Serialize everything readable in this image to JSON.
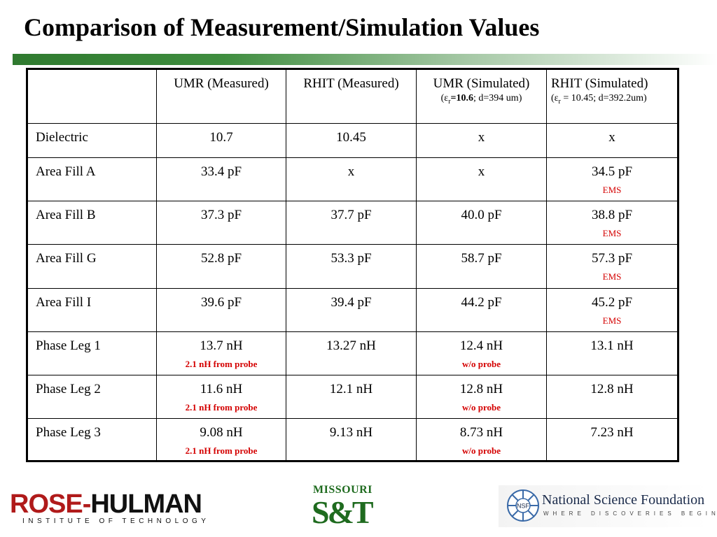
{
  "title": "Comparison of Measurement/Simulation Values",
  "table": {
    "headers": [
      {
        "label": "",
        "sub": ""
      },
      {
        "label": "UMR (Measured)",
        "sub": ""
      },
      {
        "label": "RHIT (Measured)",
        "sub": ""
      },
      {
        "label": "UMR (Simulated)",
        "sub_prefix": "(ε",
        "sub_r": "r",
        "sub_bold": "=10.6",
        "sub_suffix": "; d=394 um)"
      },
      {
        "label": "RHIT (Simulated)",
        "sub_prefix": "(ε",
        "sub_r": "r",
        "sub_suffix": " = 10.45; d=392.2um)"
      }
    ],
    "rows": [
      {
        "label": "Dielectric",
        "cells": [
          {
            "v": "10.7"
          },
          {
            "v": "10.45"
          },
          {
            "v": "x"
          },
          {
            "v": "x"
          }
        ]
      },
      {
        "label": "Area Fill A",
        "cells": [
          {
            "v": "33.4 pF"
          },
          {
            "v": "x"
          },
          {
            "v": "x"
          },
          {
            "v": "34.5 pF",
            "note": "EMS"
          }
        ]
      },
      {
        "label": "Area Fill B",
        "cells": [
          {
            "v": "37.3 pF"
          },
          {
            "v": "37.7 pF"
          },
          {
            "v": "40.0 pF"
          },
          {
            "v": "38.8 pF",
            "note": "EMS"
          }
        ]
      },
      {
        "label": "Area Fill G",
        "cells": [
          {
            "v": "52.8 pF"
          },
          {
            "v": "53.3 pF"
          },
          {
            "v": "58.7 pF"
          },
          {
            "v": "57.3 pF",
            "note": "EMS"
          }
        ]
      },
      {
        "label": "Area Fill I",
        "cells": [
          {
            "v": "39.6 pF"
          },
          {
            "v": "39.4 pF"
          },
          {
            "v": "44.2 pF"
          },
          {
            "v": "45.2 pF",
            "note": "EMS"
          }
        ]
      },
      {
        "label": "Phase Leg 1",
        "cells": [
          {
            "v": "13.7 nH",
            "note": "2.1 nH from probe",
            "bold": true
          },
          {
            "v": "13.27 nH"
          },
          {
            "v": "12.4 nH",
            "note": "w/o probe",
            "bold": true
          },
          {
            "v": "13.1 nH"
          }
        ]
      },
      {
        "label": "Phase Leg 2",
        "cells": [
          {
            "v": "11.6 nH",
            "note": "2.1 nH from probe",
            "bold": true
          },
          {
            "v": "12.1 nH"
          },
          {
            "v": "12.8 nH",
            "note": "w/o probe",
            "bold": true
          },
          {
            "v": "12.8 nH"
          }
        ]
      },
      {
        "label": "Phase Leg 3",
        "cells": [
          {
            "v": "9.08 nH",
            "note": "2.1 nH from probe",
            "bold": true
          },
          {
            "v": "9.13 nH"
          },
          {
            "v": "8.73 nH",
            "note": "w/o probe",
            "bold": true
          },
          {
            "v": "7.23 nH"
          }
        ]
      }
    ]
  },
  "logos": {
    "rose_hulman": {
      "main_a": "ROSE-",
      "main_b": "HULMAN",
      "sub": "INSTITUTE OF TECHNOLOGY"
    },
    "missouri": {
      "top": "MISSOURI",
      "main": "S&T"
    },
    "nsf": {
      "seal": "NSF",
      "name": "National Science Foundation",
      "tagline": "WHERE DISCOVERIES BEGIN"
    }
  },
  "colors": {
    "note_red": "#d40000",
    "rule_green": "#2f7a2f",
    "mst_green": "#1f6b1f",
    "rose_red": "#b01a1a"
  }
}
